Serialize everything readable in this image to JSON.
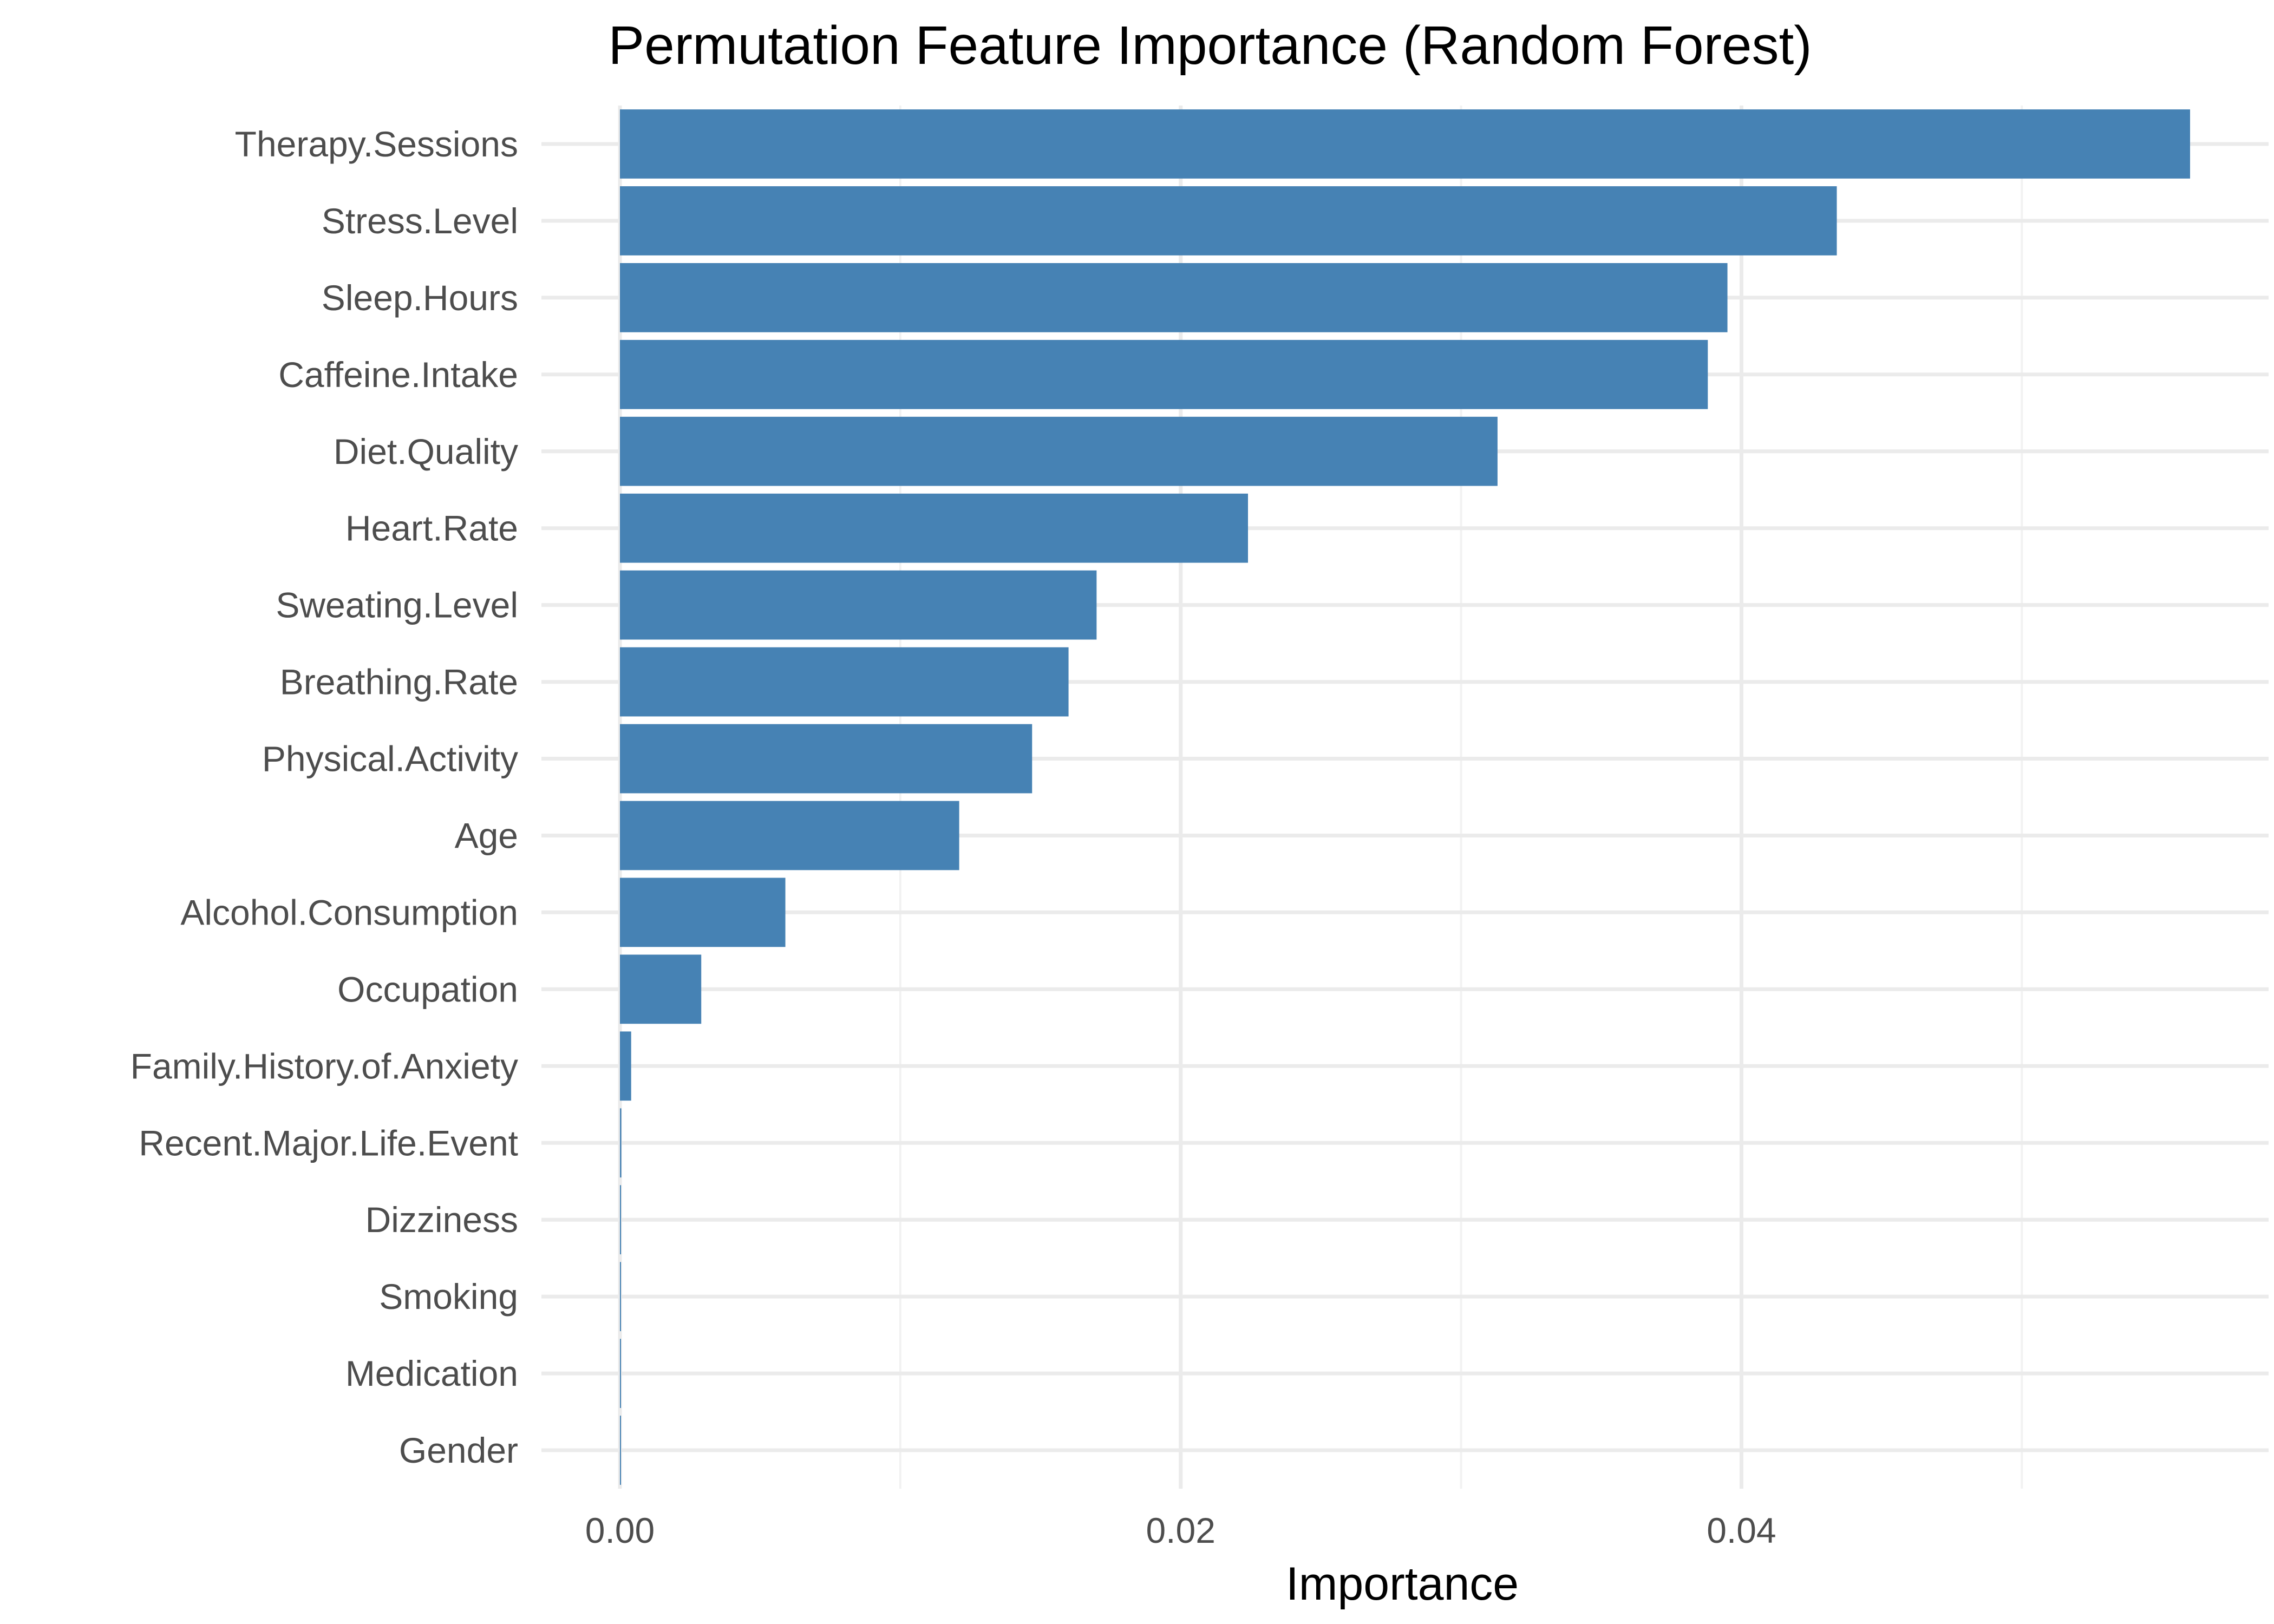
{
  "chart_data": {
    "type": "bar",
    "orientation": "horizontal",
    "title": "Permutation Feature Importance (Random Forest)",
    "xlabel": "Importance",
    "ylabel": "",
    "categories": [
      "Therapy.Sessions",
      "Stress.Level",
      "Sleep.Hours",
      "Caffeine.Intake",
      "Diet.Quality",
      "Heart.Rate",
      "Sweating.Level",
      "Breathing.Rate",
      "Physical.Activity",
      "Age",
      "Alcohol.Consumption",
      "Occupation",
      "Family.History.of.Anxiety",
      "Recent.Major.Life.Event",
      "Dizziness",
      "Smoking",
      "Medication",
      "Gender"
    ],
    "values": [
      0.056,
      0.0434,
      0.0395,
      0.0388,
      0.0313,
      0.0224,
      0.017,
      0.016,
      0.0147,
      0.0121,
      0.0059,
      0.0029,
      0.0004,
      5e-05,
      4e-05,
      3e-05,
      1e-05,
      2e-05
    ],
    "xlim": [
      -0.0028,
      0.0588
    ],
    "xticks": [
      0.0,
      0.02,
      0.04
    ],
    "xtick_labels": [
      "0.00",
      "0.02",
      "0.04"
    ],
    "grid": true,
    "legend": "none",
    "bar_color": "#4682b4"
  }
}
